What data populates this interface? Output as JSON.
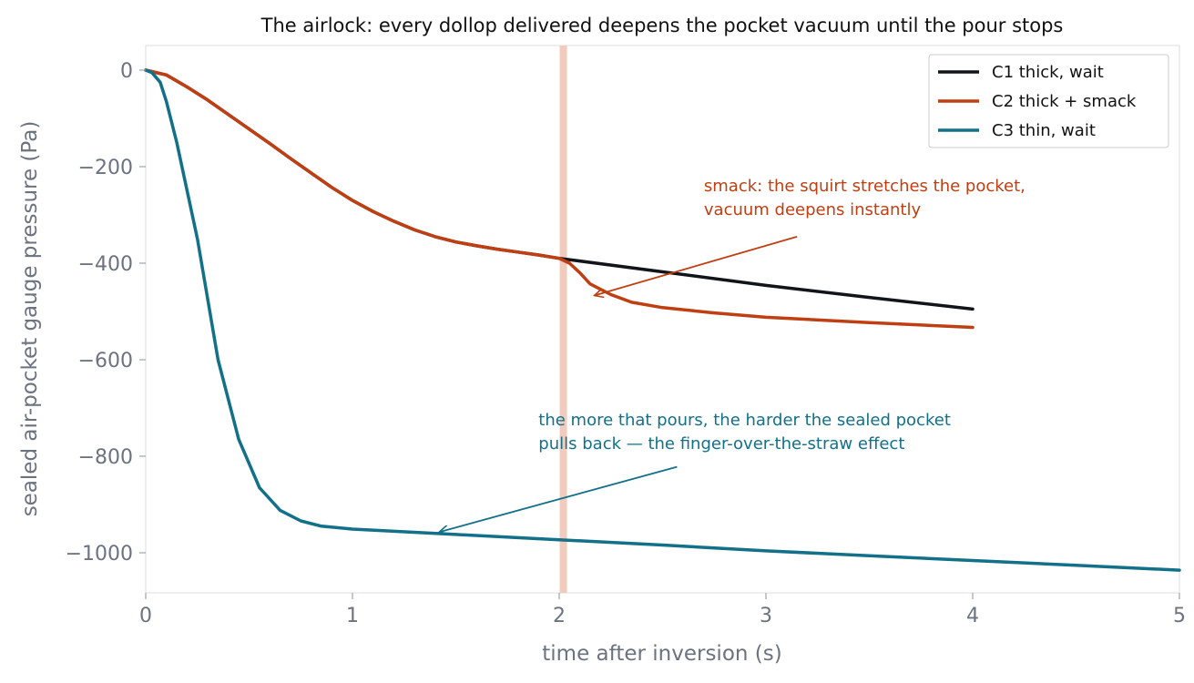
{
  "chart_data": {
    "type": "line",
    "title": "The airlock: every dollop delivered deepens the pocket vacuum until the pour stops",
    "xlabel": "time after inversion (s)",
    "ylabel": "sealed air-pocket gauge pressure (Pa)",
    "xlim": [
      0,
      5
    ],
    "ylim": [
      -1080,
      50
    ],
    "xticks": [
      0,
      1,
      2,
      3,
      4,
      5
    ],
    "xtick_labels": [
      "0",
      "1",
      "2",
      "3",
      "4",
      "5"
    ],
    "yticks": [
      0,
      -200,
      -400,
      -600,
      -800,
      -1000
    ],
    "ytick_labels": [
      "0",
      "−200",
      "−400",
      "−600",
      "−800",
      "−1000"
    ],
    "grid": false,
    "legend_position": "top-right",
    "series": [
      {
        "name": "C1 thick, wait",
        "color": "#111418",
        "points": [
          [
            0,
            0
          ],
          [
            0.1,
            -10
          ],
          [
            0.2,
            -35
          ],
          [
            0.3,
            -62
          ],
          [
            0.4,
            -92
          ],
          [
            0.5,
            -122
          ],
          [
            0.6,
            -152
          ],
          [
            0.7,
            -183
          ],
          [
            0.8,
            -213
          ],
          [
            0.9,
            -243
          ],
          [
            1.0,
            -270
          ],
          [
            1.1,
            -293
          ],
          [
            1.2,
            -313
          ],
          [
            1.3,
            -331
          ],
          [
            1.4,
            -345
          ],
          [
            1.5,
            -356
          ],
          [
            1.6,
            -364
          ],
          [
            1.7,
            -371
          ],
          [
            1.8,
            -377
          ],
          [
            1.9,
            -383
          ],
          [
            2.0,
            -390
          ],
          [
            2.5,
            -418
          ],
          [
            3.0,
            -446
          ],
          [
            3.5,
            -471
          ],
          [
            4.0,
            -495
          ]
        ]
      },
      {
        "name": "C2 thick + smack",
        "color": "#bf3f12",
        "points": [
          [
            0,
            0
          ],
          [
            0.1,
            -10
          ],
          [
            0.2,
            -35
          ],
          [
            0.3,
            -62
          ],
          [
            0.4,
            -92
          ],
          [
            0.5,
            -122
          ],
          [
            0.6,
            -152
          ],
          [
            0.7,
            -183
          ],
          [
            0.8,
            -213
          ],
          [
            0.9,
            -243
          ],
          [
            1.0,
            -270
          ],
          [
            1.1,
            -293
          ],
          [
            1.2,
            -313
          ],
          [
            1.3,
            -331
          ],
          [
            1.4,
            -345
          ],
          [
            1.5,
            -356
          ],
          [
            1.6,
            -364
          ],
          [
            1.7,
            -371
          ],
          [
            1.8,
            -377
          ],
          [
            1.9,
            -383
          ],
          [
            2.0,
            -390
          ],
          [
            2.05,
            -400
          ],
          [
            2.1,
            -420
          ],
          [
            2.15,
            -443
          ],
          [
            2.25,
            -465
          ],
          [
            2.35,
            -481
          ],
          [
            2.5,
            -492
          ],
          [
            2.75,
            -503
          ],
          [
            3.0,
            -512
          ],
          [
            3.5,
            -523
          ],
          [
            4.0,
            -533
          ]
        ]
      },
      {
        "name": "C3 thin, wait",
        "color": "#127088",
        "points": [
          [
            0,
            0
          ],
          [
            0.03,
            -5
          ],
          [
            0.07,
            -25
          ],
          [
            0.1,
            -65
          ],
          [
            0.15,
            -150
          ],
          [
            0.25,
            -350
          ],
          [
            0.35,
            -600
          ],
          [
            0.45,
            -765
          ],
          [
            0.55,
            -865
          ],
          [
            0.65,
            -912
          ],
          [
            0.75,
            -934
          ],
          [
            0.85,
            -945
          ],
          [
            1.0,
            -951
          ],
          [
            1.5,
            -962
          ],
          [
            2.0,
            -973
          ],
          [
            2.5,
            -984
          ],
          [
            3.0,
            -996
          ],
          [
            3.5,
            -1006
          ],
          [
            4.0,
            -1016
          ],
          [
            4.5,
            -1026
          ],
          [
            5.0,
            -1036
          ]
        ]
      }
    ],
    "vertical_band": {
      "x": 2.02,
      "color": "#f2cbbd"
    },
    "annotations": [
      {
        "lines": [
          "smack: the squirt stretches the pocket,",
          "vacuum deepens instantly"
        ],
        "color": "#bf3f12",
        "text_at": [
          2.7,
          -300
        ],
        "tail": [
          3.15,
          -345
        ],
        "head": [
          2.17,
          -467
        ]
      },
      {
        "lines": [
          "the more that pours, the harder the sealed pocket",
          "pulls back — the finger-over-the-straw effect"
        ],
        "color": "#127088",
        "text_at": [
          1.9,
          -785
        ],
        "tail": [
          2.57,
          -822
        ],
        "head": [
          1.42,
          -957
        ]
      }
    ]
  }
}
